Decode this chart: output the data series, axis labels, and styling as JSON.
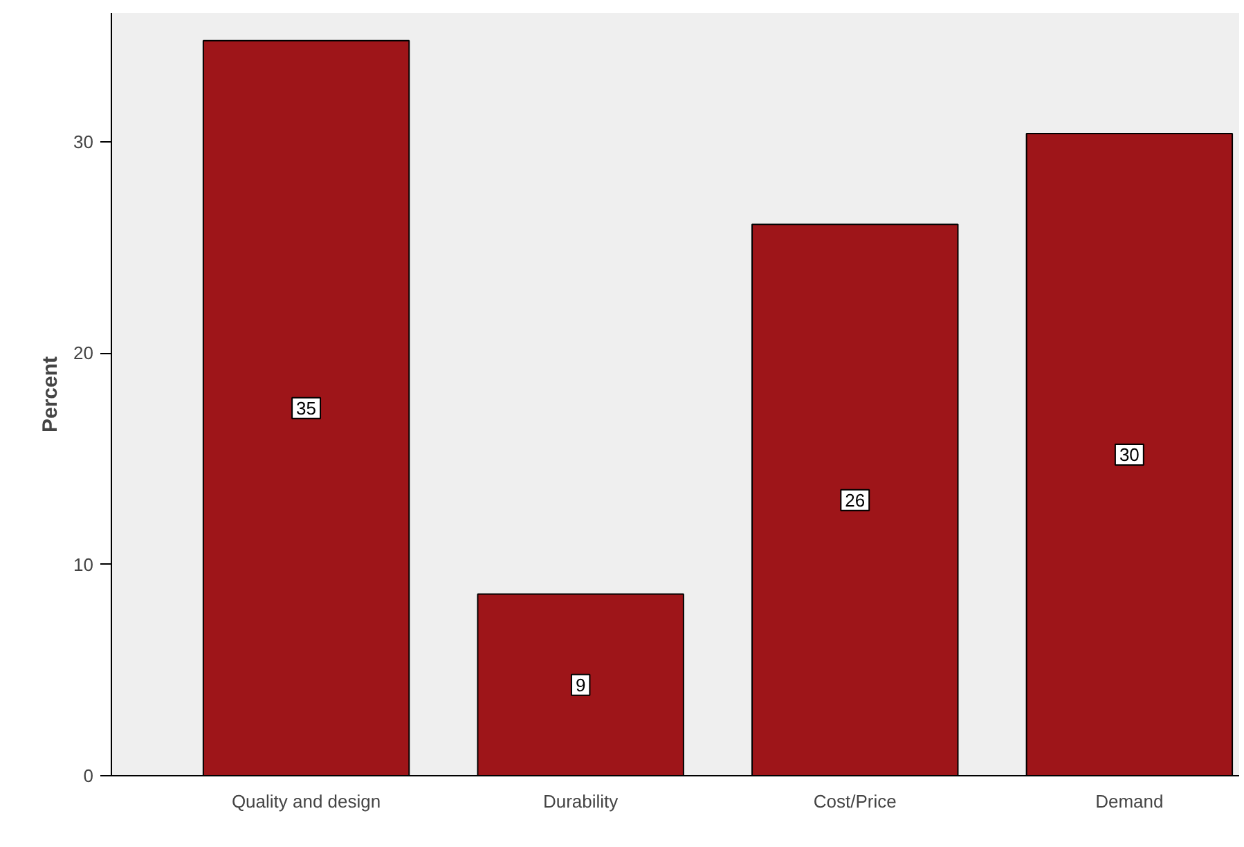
{
  "chart_data": {
    "type": "bar",
    "ylabel": "Percent",
    "categories": [
      "Quality and design",
      "Durability",
      "Cost/Price",
      "Demand"
    ],
    "values": [
      34.8,
      8.6,
      26.1,
      30.4
    ],
    "value_labels": [
      "35",
      "9",
      "26",
      "30"
    ],
    "color": "#9e1519",
    "ylim": [
      0,
      36.1
    ],
    "yticks": [
      0,
      10,
      20,
      30
    ],
    "grid": false
  }
}
